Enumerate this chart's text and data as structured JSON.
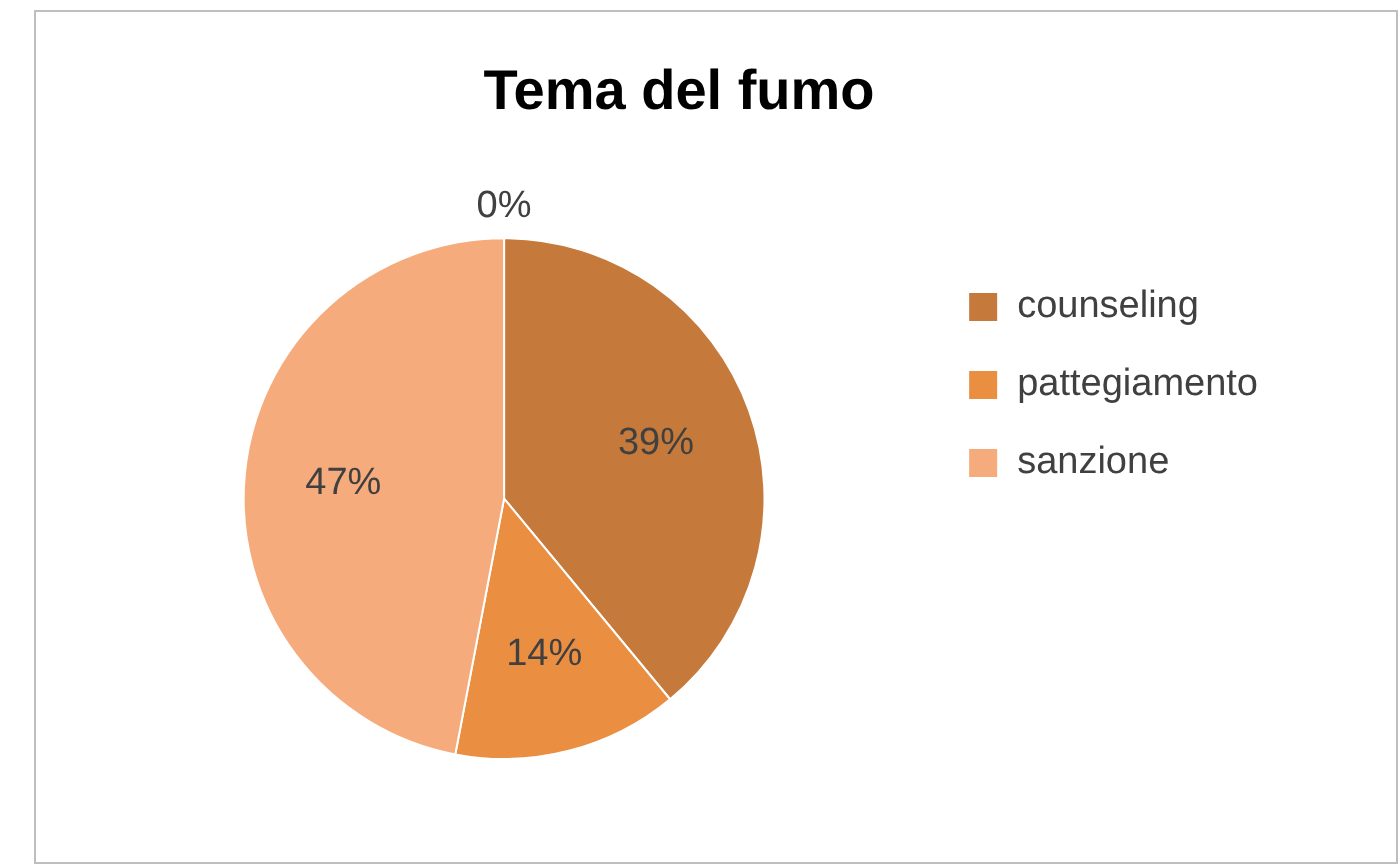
{
  "chart_data": {
    "type": "pie",
    "title": "Tema del fumo",
    "categories": [
      "counseling",
      "pattegiamento",
      "sanzione",
      null
    ],
    "values": [
      39,
      14,
      47,
      0
    ],
    "colors": [
      "#c5793a",
      "#ea8f42",
      "#f5ab7b",
      "#f7c9a8"
    ],
    "value_labels": [
      "39%",
      "14%",
      "47%",
      "0%"
    ],
    "legend": "right"
  }
}
